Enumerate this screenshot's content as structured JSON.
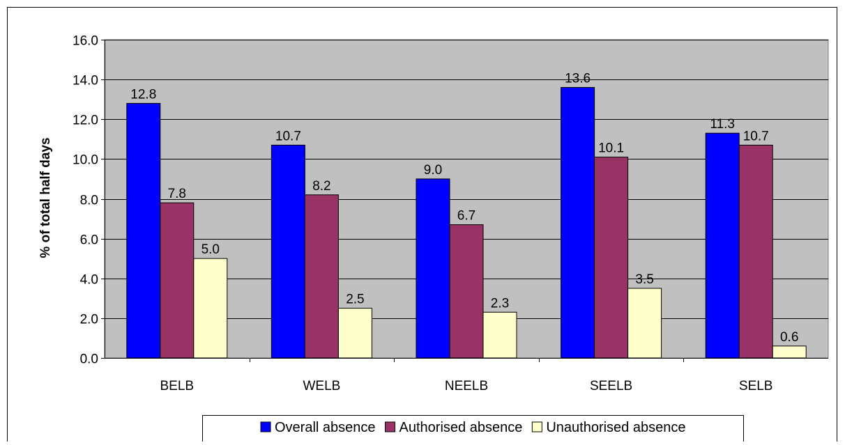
{
  "chart_data": {
    "type": "bar",
    "title": "",
    "xlabel": "",
    "ylabel": "% of total half days",
    "ylim": [
      0,
      16
    ],
    "yticks": [
      "0.0",
      "2.0",
      "4.0",
      "6.0",
      "8.0",
      "10.0",
      "12.0",
      "14.0",
      "16.0"
    ],
    "grid": true,
    "legend_position": "bottom",
    "categories": [
      "BELB",
      "WELB",
      "NEELB",
      "SEELB",
      "SELB"
    ],
    "series": [
      {
        "name": "Overall absence",
        "color": "#0000ff",
        "values": [
          12.8,
          10.7,
          9.0,
          13.6,
          11.3
        ],
        "labels": [
          "12.8",
          "10.7",
          "9.0",
          "13.6",
          "11.3"
        ]
      },
      {
        "name": "Authorised absence",
        "color": "#993366",
        "values": [
          7.8,
          8.2,
          6.7,
          10.1,
          10.7
        ],
        "labels": [
          "7.8",
          "8.2",
          "6.7",
          "10.1",
          "10.7"
        ]
      },
      {
        "name": "Unauthorised absence",
        "color": "#ffffcc",
        "values": [
          5.0,
          2.5,
          2.3,
          3.5,
          0.6
        ],
        "labels": [
          "5.0",
          "2.5",
          "2.3",
          "3.5",
          "0.6"
        ]
      }
    ],
    "plot_background": "#c0c0c0"
  }
}
